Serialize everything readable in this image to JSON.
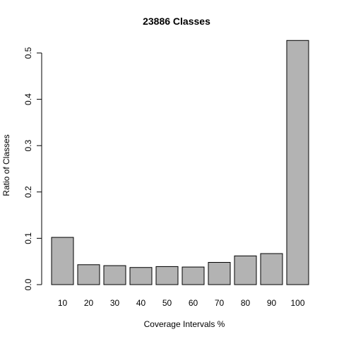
{
  "chart_data": {
    "type": "bar",
    "title": "23886 Classes",
    "xlabel": "Coverage Intervals %",
    "ylabel": "Ratio of Classes",
    "categories": [
      "10",
      "20",
      "30",
      "40",
      "50",
      "60",
      "70",
      "80",
      "90",
      "100"
    ],
    "values": [
      0.102,
      0.043,
      0.041,
      0.037,
      0.039,
      0.038,
      0.048,
      0.062,
      0.067,
      0.527
    ],
    "ylim": [
      0,
      0.5
    ],
    "yticks": [
      "0.0",
      "0.1",
      "0.2",
      "0.3",
      "0.4",
      "0.5"
    ],
    "bar_color": "#b3b3b3",
    "grid": false,
    "legend": "none"
  }
}
